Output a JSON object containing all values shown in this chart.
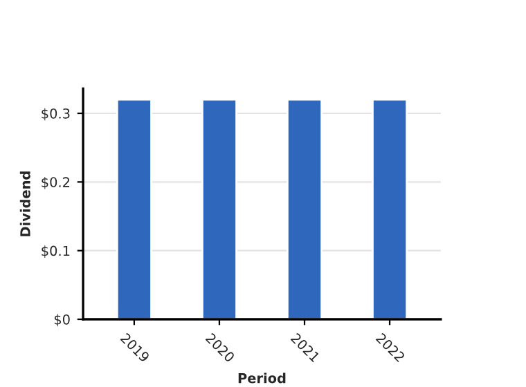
{
  "chart_data": {
    "type": "bar",
    "xlabel": "Period",
    "ylabel": "Dividend",
    "categories": [
      "2019",
      "2020",
      "2021",
      "2022"
    ],
    "values": [
      0.32,
      0.32,
      0.32,
      0.32
    ],
    "color": "#2f67bd",
    "ylim": [
      0,
      0.336
    ],
    "yticks": [
      {
        "value": 0,
        "label": "$0"
      },
      {
        "value": 0.1,
        "label": "$0.1"
      },
      {
        "value": 0.2,
        "label": "$0.2"
      },
      {
        "value": 0.3,
        "label": "$0.3"
      }
    ],
    "grid": "y"
  }
}
